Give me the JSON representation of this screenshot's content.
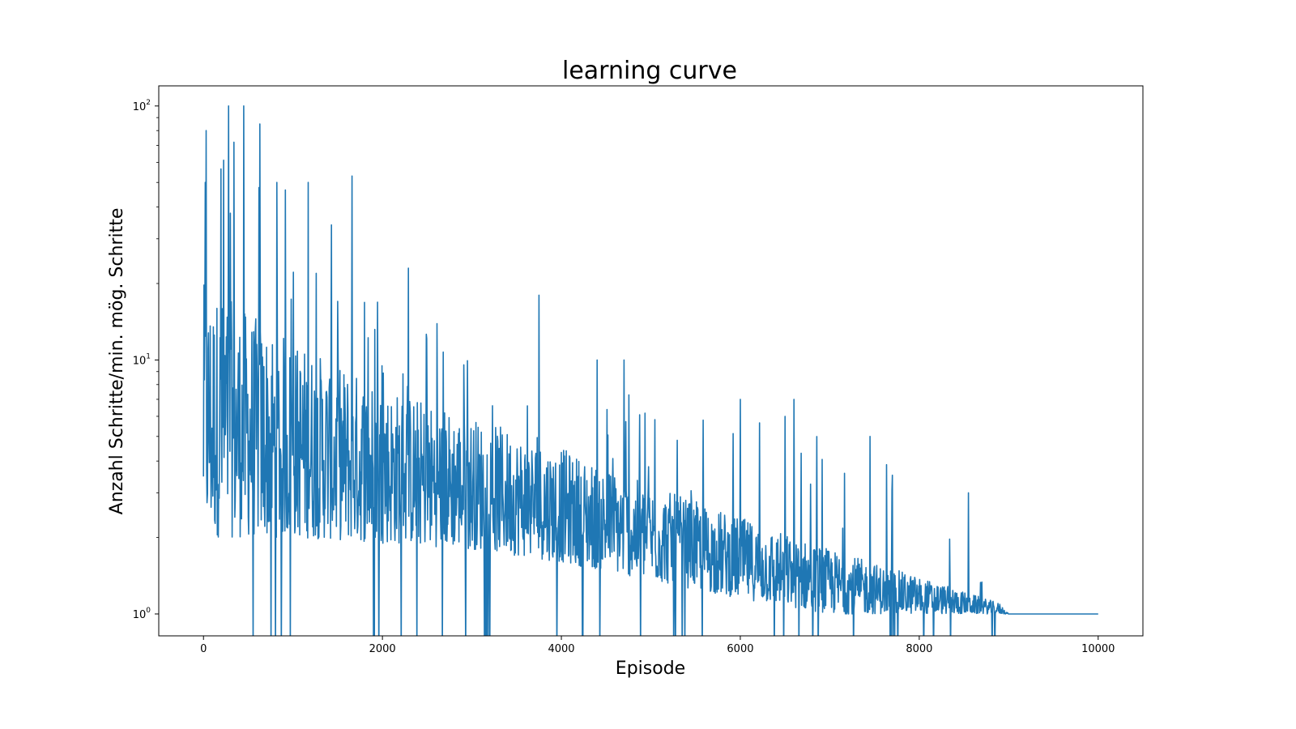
{
  "chart_data": {
    "type": "line",
    "title": "learning curve",
    "xlabel": "Episode",
    "ylabel": "Anzahl Schritte/min. mög. Schritte",
    "yscale": "log",
    "xlim": [
      -500,
      10500
    ],
    "ylim": [
      0.82,
      120
    ],
    "xticks": [
      0,
      2000,
      4000,
      6000,
      8000,
      10000
    ],
    "xtick_labels": [
      "0",
      "2000",
      "4000",
      "6000",
      "8000",
      "10000"
    ],
    "yticks": [
      {
        "value": 1,
        "base": "10",
        "exp": "0"
      },
      {
        "value": 10,
        "base": "10",
        "exp": "1"
      },
      {
        "value": 100,
        "base": "10",
        "exp": "2"
      }
    ],
    "grid": false,
    "legend": "none",
    "line_color": "#1f77b4",
    "series": [
      {
        "x_start": 0,
        "x_end": 10000,
        "trend": "noisy values per episode, envelope decaying from ~2–20 (spikes to 100) at start to a constant 1 after episode ~9000",
        "envelope": [
          {
            "x": 0,
            "low": 2.0,
            "high": 20,
            "spike": 100
          },
          {
            "x": 1000,
            "low": 2.0,
            "high": 12,
            "spike": 50
          },
          {
            "x": 2000,
            "low": 1.9,
            "high": 8,
            "spike": 22
          },
          {
            "x": 3000,
            "low": 1.8,
            "high": 6,
            "spike": 12
          },
          {
            "x": 4000,
            "low": 1.6,
            "high": 4.5,
            "spike": 9
          },
          {
            "x": 5000,
            "low": 1.35,
            "high": 3.2,
            "spike": 7.5
          },
          {
            "x": 6000,
            "low": 1.15,
            "high": 2.4,
            "spike": 6
          },
          {
            "x": 7000,
            "low": 1.0,
            "high": 1.8,
            "spike": 7
          },
          {
            "x": 8000,
            "low": 1.0,
            "high": 1.4,
            "spike": 3
          },
          {
            "x": 8900,
            "low": 1.0,
            "high": 1.1,
            "spike": 1.5
          },
          {
            "x": 9000,
            "low": 1.0,
            "high": 1.0,
            "spike": 1.0
          },
          {
            "x": 10000,
            "low": 1.0,
            "high": 1.0,
            "spike": 1.0
          }
        ],
        "notable_spikes": [
          {
            "x": 20,
            "y": 50
          },
          {
            "x": 30,
            "y": 80
          },
          {
            "x": 280,
            "y": 100
          },
          {
            "x": 450,
            "y": 100
          },
          {
            "x": 630,
            "y": 85
          },
          {
            "x": 340,
            "y": 72
          },
          {
            "x": 820,
            "y": 50
          },
          {
            "x": 1170,
            "y": 50
          },
          {
            "x": 1660,
            "y": 53
          },
          {
            "x": 1430,
            "y": 34
          },
          {
            "x": 2290,
            "y": 23
          },
          {
            "x": 3750,
            "y": 18
          },
          {
            "x": 4400,
            "y": 10
          },
          {
            "x": 4700,
            "y": 10
          },
          {
            "x": 6000,
            "y": 7
          },
          {
            "x": 6500,
            "y": 6
          },
          {
            "x": 6600,
            "y": 7
          },
          {
            "x": 7450,
            "y": 5
          },
          {
            "x": 8550,
            "y": 3
          }
        ],
        "dips_below_one_until": 8900
      }
    ]
  }
}
